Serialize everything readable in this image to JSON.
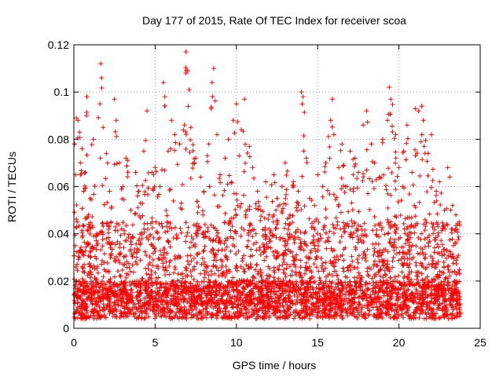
{
  "chart_data": {
    "type": "scatter",
    "title": "Day 177 of 2015, Rate Of TEC Index for receiver scoa",
    "xlabel": "GPS time / hours",
    "ylabel": "ROTI / TECUs",
    "xlim": [
      0,
      25
    ],
    "ylim": [
      0,
      0.12
    ],
    "xticks": [
      0,
      5,
      10,
      15,
      20,
      25
    ],
    "yticks": [
      0,
      0.02,
      0.04,
      0.06,
      0.08,
      0.1,
      0.12
    ],
    "yticks_labels": [
      "0",
      "0.02",
      "0.04",
      "0.06",
      "0.08",
      "0.1",
      "0.12"
    ],
    "grid": true,
    "marker": "+",
    "color": "#ff0000",
    "series": [
      {
        "x": [
          0.05,
          0.1,
          0.15,
          0.2,
          0.25,
          0.3,
          0.35,
          0.4,
          0.5,
          0.6,
          0.7,
          0.8,
          0.9,
          1.0,
          1.2,
          1.4,
          1.6,
          1.65,
          1.7,
          1.8,
          2.0,
          2.2,
          2.5,
          2.6,
          2.8,
          3.0,
          3.2,
          3.5,
          3.8,
          4.0,
          4.3,
          4.5,
          4.8,
          5.0,
          5.3,
          5.5,
          5.6,
          5.8,
          6.0,
          6.2,
          6.5,
          6.8,
          6.9,
          7.0,
          7.2,
          7.5,
          7.8,
          8.0,
          8.3,
          8.5,
          8.6,
          8.8,
          9.0,
          9.3,
          9.5,
          9.8,
          10.0,
          10.3,
          10.5,
          10.8,
          11.0,
          11.3,
          11.5,
          11.8,
          12.0,
          12.3,
          12.5,
          12.8,
          13.0,
          13.3,
          13.5,
          13.8,
          14.0,
          14.1,
          14.3,
          14.5,
          14.8,
          15.0,
          15.3,
          15.5,
          15.8,
          15.9,
          16.0,
          16.3,
          16.5,
          16.8,
          17.0,
          17.3,
          17.5,
          17.8,
          18.0,
          18.3,
          18.5,
          18.8,
          19.0,
          19.3,
          19.4,
          19.5,
          19.8,
          20.0,
          20.3,
          20.5,
          20.8,
          21.0,
          21.2,
          21.4,
          21.5,
          21.8,
          22.0,
          22.3,
          22.5,
          22.8,
          23.0,
          23.3,
          23.5,
          23.7
        ],
        "y": [
          0.078,
          0.065,
          0.089,
          0.045,
          0.088,
          0.032,
          0.083,
          0.07,
          0.076,
          0.058,
          0.066,
          0.098,
          0.048,
          0.055,
          0.08,
          0.04,
          0.095,
          0.112,
          0.106,
          0.085,
          0.074,
          0.058,
          0.097,
          0.088,
          0.07,
          0.06,
          0.072,
          0.05,
          0.066,
          0.058,
          0.075,
          0.092,
          0.066,
          0.068,
          0.06,
          0.104,
          0.098,
          0.075,
          0.088,
          0.082,
          0.078,
          0.086,
          0.117,
          0.109,
          0.085,
          0.072,
          0.064,
          0.058,
          0.078,
          0.104,
          0.11,
          0.082,
          0.065,
          0.072,
          0.08,
          0.088,
          0.095,
          0.084,
          0.097,
          0.077,
          0.068,
          0.058,
          0.05,
          0.062,
          0.048,
          0.065,
          0.055,
          0.06,
          0.07,
          0.048,
          0.062,
          0.058,
          0.1,
          0.098,
          0.072,
          0.055,
          0.052,
          0.065,
          0.06,
          0.07,
          0.088,
          0.097,
          0.082,
          0.068,
          0.078,
          0.06,
          0.075,
          0.072,
          0.066,
          0.086,
          0.092,
          0.078,
          0.07,
          0.064,
          0.08,
          0.088,
          0.102,
          0.097,
          0.082,
          0.068,
          0.075,
          0.086,
          0.066,
          0.093,
          0.092,
          0.094,
          0.088,
          0.074,
          0.082,
          0.058,
          0.062,
          0.05,
          0.068,
          0.052,
          0.048,
          0.045
        ]
      }
    ]
  }
}
